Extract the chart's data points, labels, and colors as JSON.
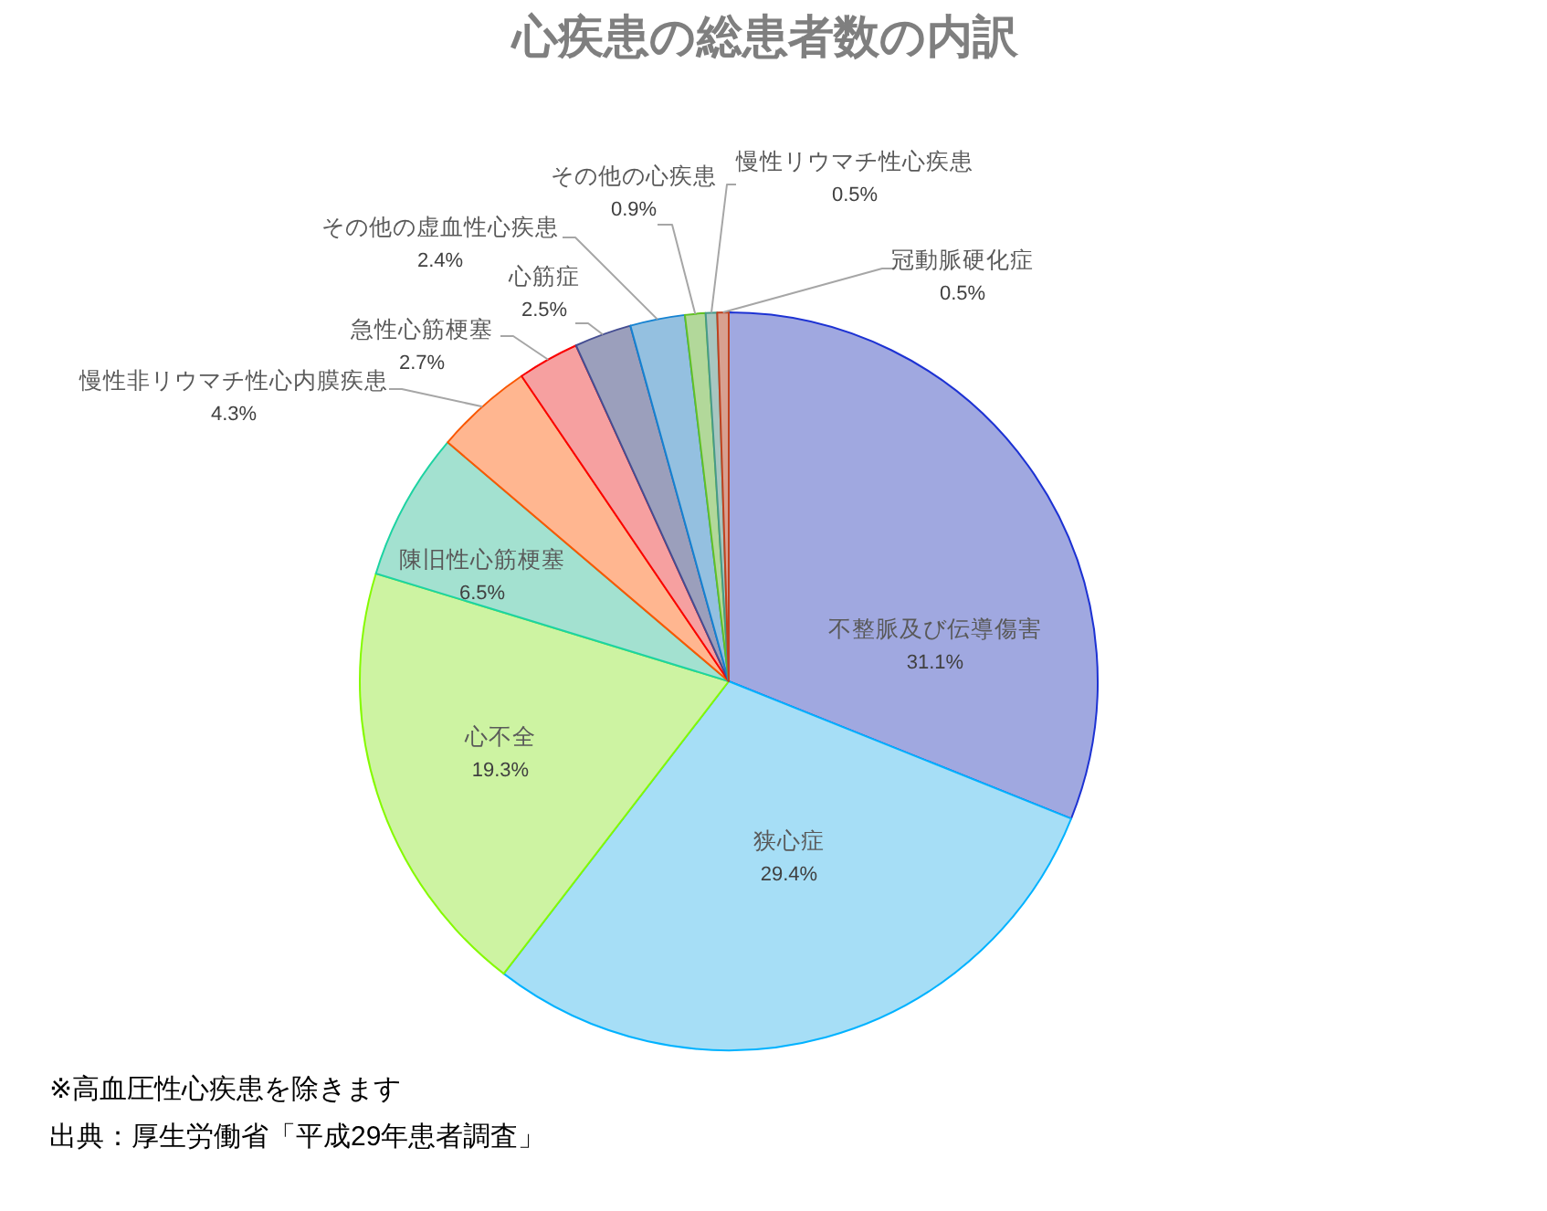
{
  "chart_data": {
    "type": "pie",
    "title": "心疾患の総患者数の内訳",
    "categories": [
      "不整脈及び伝導傷害",
      "狭心症",
      "心不全",
      "陳旧性心筋梗塞",
      "慢性非リウマチ性心内膜疾患",
      "急性心筋梗塞",
      "心筋症",
      "その他の虚血性心疾患",
      "その他の心疾患",
      "慢性リウマチ性心疾患",
      "冠動脈硬化症"
    ],
    "values": [
      31.1,
      29.4,
      19.3,
      6.5,
      4.3,
      2.7,
      2.5,
      2.4,
      0.9,
      0.5,
      0.5
    ],
    "value_labels": [
      "31.1%",
      "29.4%",
      "19.3%",
      "6.5%",
      "4.3%",
      "2.7%",
      "2.5%",
      "2.4%",
      "0.9%",
      "0.5%",
      "0.5%"
    ],
    "colors": [
      "#a0a8e0",
      "#a6def6",
      "#cdf3a2",
      "#a3e1d0",
      "#ffb690",
      "#f6a0a0",
      "#9b9fbc",
      "#94c0e0",
      "#b2d89a",
      "#a8c6c0",
      "#d8a090"
    ],
    "annotations": [
      "※高血圧性心疾患を除きます",
      "出典：厚生労働省「平成29年患者調査」"
    ]
  }
}
